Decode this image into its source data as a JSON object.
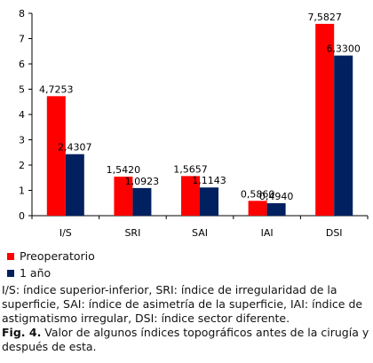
{
  "chart_data": {
    "type": "bar",
    "categories": [
      "I/S",
      "SRI",
      "SAI",
      "IAI",
      "DSI"
    ],
    "series": [
      {
        "name": "Preoperatorio",
        "color": "#ff0000",
        "values": [
          4.7253,
          1.542,
          1.5657,
          0.586,
          7.5827
        ],
        "labels": [
          "4,7253",
          "1,5420",
          "1,5657",
          "0,5860",
          "7,5827"
        ]
      },
      {
        "name": "1 año",
        "color": "#002060",
        "values": [
          2.4307,
          1.0923,
          1.1143,
          0.494,
          6.33
        ],
        "labels": [
          "2,4307",
          "1,0923",
          "1,1143",
          "0,4940",
          "6,3300"
        ]
      }
    ],
    "ylim": [
      0,
      8
    ],
    "yticks": [
      "0",
      "1",
      "2",
      "3",
      "4",
      "5",
      "6",
      "7",
      "8"
    ],
    "grid": false,
    "legend_position": "bottom-left"
  },
  "caption": {
    "abbreviations": "I/S: índice superior-inferior, SRI: índice de irregularidad de la superficie, SAI: índice de asimetría de la superficie, IAI: índice de astigmatismo irregular, DSI: índice sector diferente.",
    "figure_label": "Fig. 4.",
    "figure_text": " Valor de algunos índices topográficos antes de la cirugía y después de esta."
  }
}
